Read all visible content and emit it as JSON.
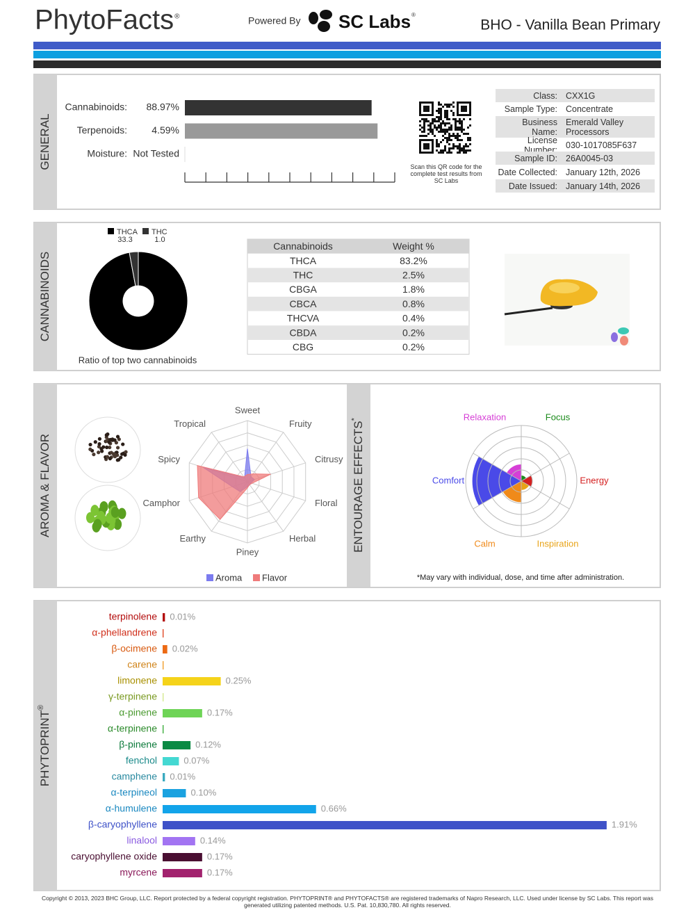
{
  "header": {
    "brand": "PhytoFacts",
    "brand_mark": "®",
    "powered_by": "Powered By",
    "lab": "SC Labs",
    "lab_mark": "®",
    "product": "BHO - Vanilla Bean Primary"
  },
  "general": {
    "section": "GENERAL",
    "bars": [
      {
        "label": "Cannabinoids:",
        "value": 88.97,
        "value_label": "88.97%",
        "xlim": [
          0,
          100
        ],
        "color": "#333333"
      },
      {
        "label": "Terpenoids:",
        "value": 4.59,
        "value_label": "4.59%",
        "xlim": [
          0,
          5
        ],
        "color": "#999999"
      },
      {
        "label": "Moisture:",
        "value_label": "Not Tested"
      }
    ],
    "qr_caption": "Scan this QR code for the complete test results from SC Labs",
    "info": [
      [
        "Class:",
        "CXX1G"
      ],
      [
        "Sample Type:",
        "Concentrate"
      ],
      [
        "Business Name:",
        "Emerald Valley Processors"
      ],
      [
        "License Number:",
        "030-1017085F637"
      ],
      [
        "Sample ID:",
        "26A0045-03"
      ],
      [
        "Date Collected:",
        "January 12th, 2026"
      ],
      [
        "Date Issued:",
        "January 14th, 2026"
      ]
    ]
  },
  "cannabinoids": {
    "section": "CANNABINOIDS",
    "ratio": {
      "type": "pie",
      "series": [
        {
          "name": "THCA",
          "value": 33.3,
          "value_label": "33.3",
          "color": "#000000"
        },
        {
          "name": "THC",
          "value": 1.0,
          "value_label": "1.0",
          "color": "#333333"
        }
      ],
      "caption": "Ratio of top two cannabinoids"
    },
    "table": {
      "columns": [
        "Cannabinoids",
        "Weight %"
      ],
      "rows": [
        [
          "THCA",
          "83.2%"
        ],
        [
          "THC",
          "2.5%"
        ],
        [
          "CBGA",
          "1.8%"
        ],
        [
          "CBCA",
          "0.8%"
        ],
        [
          "THCVA",
          "0.4%"
        ],
        [
          "CBDA",
          "0.2%"
        ],
        [
          "CBG",
          "0.2%"
        ]
      ]
    }
  },
  "aroma_flavor": {
    "section": "AROMA & FLAVOR",
    "chart": {
      "type": "radar",
      "axes": [
        "Sweet",
        "Fruity",
        "Citrusy",
        "Floral",
        "Herbal",
        "Piney",
        "Earthy",
        "Camphor",
        "Spicy",
        "Tropical"
      ],
      "rlim": [
        0,
        5
      ],
      "series": [
        {
          "name": "Aroma",
          "color": "#7b7bef",
          "values": [
            2.7,
            0.5,
            0.6,
            0.3,
            0.3,
            0.4,
            1.0,
            1.3,
            3.8,
            0.4
          ]
        },
        {
          "name": "Flavor",
          "color": "#ef7b7b",
          "values": [
            0.6,
            0.8,
            2.0,
            0.4,
            0.3,
            0.5,
            3.8,
            4.2,
            4.3,
            0.5
          ]
        }
      ]
    }
  },
  "entourage": {
    "section": "ENTOURAGE EFFECTS",
    "section_mark": "*",
    "chart": {
      "type": "polar-area",
      "rlim": [
        0,
        5
      ],
      "categories": [
        "Focus",
        "Energy",
        "Inspiration",
        "Calm",
        "Comfort",
        "Relaxation"
      ],
      "values": [
        0.5,
        1.0,
        0.8,
        1.9,
        4.4,
        1.5
      ],
      "colors": [
        "#1a8a1a",
        "#d42020",
        "#e8a317",
        "#f08a1a",
        "#4a4ae8",
        "#d63fd6"
      ]
    },
    "note": "*May vary with individual, dose, and time after administration."
  },
  "phytoprint": {
    "section": "PHYTOPRINT",
    "section_mark": "®",
    "chart": {
      "type": "bar",
      "orientation": "horizontal",
      "xlim": [
        0,
        2
      ],
      "categories": [
        "terpinolene",
        "α-phellandrene",
        "β-ocimene",
        "carene",
        "limonene",
        "γ-terpinene",
        "α-pinene",
        "α-terpinene",
        "β-pinene",
        "fenchol",
        "camphene",
        "α-terpineol",
        "α-humulene",
        "β-caryophyllene",
        "linalool",
        "caryophyllene oxide",
        "myrcene"
      ],
      "values": [
        0.01,
        0.004,
        0.02,
        0.004,
        0.25,
        0.004,
        0.17,
        0.004,
        0.12,
        0.07,
        0.01,
        0.1,
        0.66,
        1.91,
        0.14,
        0.17,
        0.17
      ],
      "value_labels": [
        "0.01%",
        null,
        "0.02%",
        null,
        "0.25%",
        null,
        "0.17%",
        null,
        "0.12%",
        "0.07%",
        "0.01%",
        "0.10%",
        "0.66%",
        "1.91%",
        "0.14%",
        "0.17%",
        "0.17%"
      ],
      "colors": [
        "#b30c0c",
        "#e0401c",
        "#ec6a14",
        "#f09a22",
        "#f5d31a",
        "#d2e88a",
        "#6ed456",
        "#35aa35",
        "#0b8a44",
        "#44d8d2",
        "#3aaac0",
        "#1aa2e0",
        "#12a4ea",
        "#3f52c8",
        "#a274f2",
        "#4a0f32",
        "#a2226e"
      ],
      "label_colors": [
        "#b30c0c",
        "#d0301c",
        "#d85a10",
        "#d0841a",
        "#a89000",
        "#7a9a22",
        "#4a9a30",
        "#2a8a2a",
        "#0b7a3a",
        "#1a8a8a",
        "#2a8aa0",
        "#1a88c0",
        "#1a88c0",
        "#3f52c8",
        "#8a5ae0",
        "#4a0f32",
        "#8a1a5a"
      ]
    }
  },
  "footer": "Copyright © 2013, 2023 BHC Group, LLC. Report protected by a federal copyright registration. PHYTOPRINT® and PHYTOFACTS® are registered trademarks of Napro Research, LLC. Used under license by SC Labs. This report was generated utilizing patented methods. U.S. Pat. 10,830,780. All rights reserved."
}
